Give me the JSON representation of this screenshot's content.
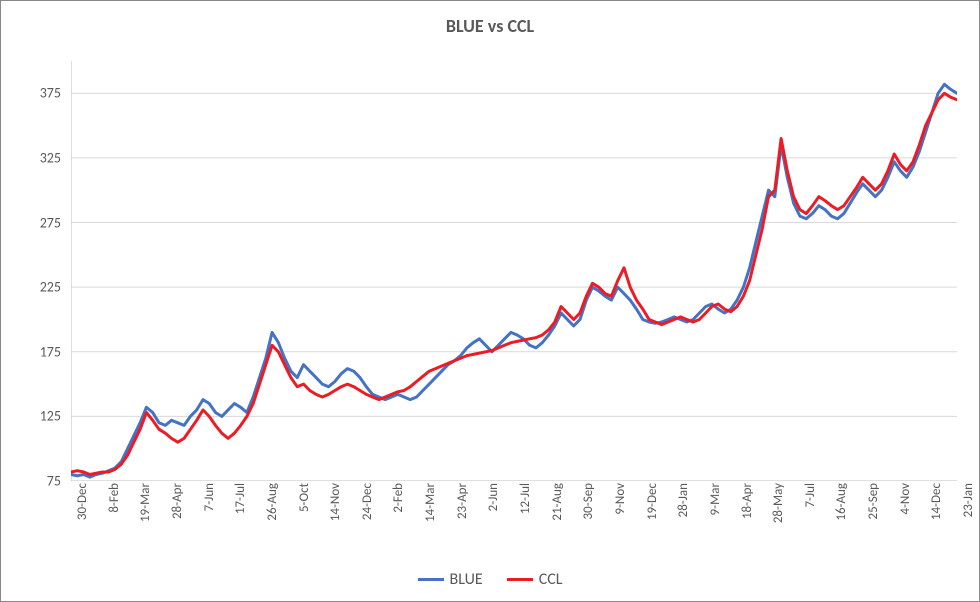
{
  "chart": {
    "type": "line",
    "title": "BLUE vs CCL",
    "title_fontsize": 18,
    "title_weight": "bold",
    "title_color": "#595959",
    "background_color": "#ffffff",
    "plot_background": "#ffffff",
    "border_color": "#888888",
    "grid_color": "#d9d9d9",
    "axis_line_color": "#bfbfbf",
    "axis_label_color": "#595959",
    "axis_label_fontsize": 14,
    "x_label_fontsize": 13,
    "x_label_rotation": -90,
    "line_width": 3,
    "ylim": [
      75,
      400
    ],
    "xlim": [
      0,
      24
    ],
    "yticks": [
      75,
      125,
      175,
      225,
      275,
      325,
      375
    ],
    "xticks": [
      "30-Dec",
      "8-Feb",
      "19-Mar",
      "28-Apr",
      "7-Jun",
      "17-Jul",
      "26-Aug",
      "5-Oct",
      "14-Nov",
      "24-Dec",
      "2-Feb",
      "14-Mar",
      "23-Apr",
      "2-Jun",
      "12-Jul",
      "21-Aug",
      "30-Sep",
      "9-Nov",
      "19-Dec",
      "28-Jan",
      "9-Mar",
      "18-Apr",
      "28-May",
      "7-Jul",
      "16-Aug",
      "25-Sep",
      "4-Nov",
      "14-Dec",
      "23-Jan"
    ],
    "series": [
      {
        "name": "BLUE",
        "color": "#4472c4",
        "data": [
          80,
          79,
          80,
          78,
          80,
          81,
          83,
          85,
          90,
          100,
          110,
          120,
          132,
          128,
          120,
          118,
          122,
          120,
          118,
          125,
          130,
          138,
          135,
          128,
          125,
          130,
          135,
          132,
          128,
          140,
          155,
          170,
          190,
          182,
          170,
          160,
          155,
          165,
          160,
          155,
          150,
          148,
          152,
          158,
          162,
          160,
          155,
          148,
          142,
          140,
          138,
          140,
          142,
          140,
          138,
          140,
          145,
          150,
          155,
          160,
          165,
          168,
          172,
          178,
          182,
          185,
          180,
          175,
          180,
          185,
          190,
          188,
          185,
          180,
          178,
          182,
          188,
          195,
          205,
          200,
          195,
          200,
          215,
          225,
          222,
          218,
          215,
          225,
          220,
          215,
          208,
          200,
          198,
          197,
          198,
          200,
          202,
          200,
          198,
          200,
          205,
          210,
          212,
          208,
          205,
          208,
          215,
          225,
          240,
          260,
          280,
          300,
          295,
          335,
          310,
          290,
          280,
          278,
          282,
          288,
          285,
          280,
          278,
          282,
          290,
          298,
          305,
          300,
          295,
          300,
          310,
          322,
          315,
          310,
          318,
          330,
          345,
          360,
          375,
          382,
          378,
          375
        ]
      },
      {
        "name": "CCL",
        "color": "#ed1c24",
        "data": [
          82,
          83,
          82,
          80,
          81,
          82,
          82,
          84,
          88,
          95,
          105,
          115,
          128,
          122,
          115,
          112,
          108,
          105,
          108,
          115,
          122,
          130,
          125,
          118,
          112,
          108,
          112,
          118,
          125,
          135,
          150,
          165,
          180,
          175,
          165,
          155,
          148,
          150,
          145,
          142,
          140,
          142,
          145,
          148,
          150,
          148,
          145,
          142,
          140,
          138,
          140,
          142,
          144,
          145,
          148,
          152,
          156,
          160,
          162,
          164,
          166,
          168,
          170,
          172,
          173,
          174,
          175,
          176,
          178,
          180,
          182,
          183,
          184,
          185,
          186,
          188,
          192,
          198,
          210,
          205,
          200,
          205,
          218,
          228,
          225,
          220,
          218,
          230,
          240,
          225,
          215,
          208,
          200,
          198,
          196,
          198,
          200,
          202,
          200,
          198,
          200,
          205,
          210,
          212,
          208,
          206,
          210,
          218,
          230,
          250,
          270,
          295,
          300,
          340,
          315,
          295,
          285,
          282,
          288,
          295,
          292,
          288,
          285,
          288,
          295,
          302,
          310,
          305,
          300,
          305,
          315,
          328,
          320,
          315,
          322,
          335,
          350,
          360,
          370,
          375,
          372,
          370
        ]
      }
    ],
    "legend": {
      "position": "bottom",
      "items": [
        {
          "label": "BLUE",
          "color": "#4472c4"
        },
        {
          "label": "CCL",
          "color": "#ed1c24"
        }
      ]
    }
  }
}
